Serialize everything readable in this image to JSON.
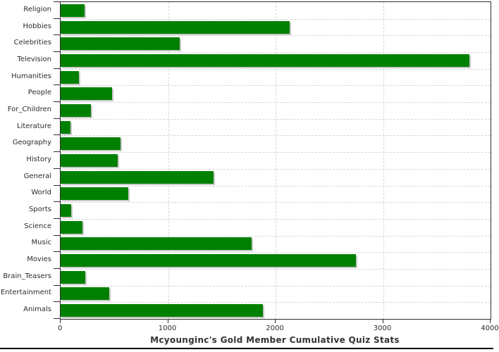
{
  "chart_data": {
    "type": "bar",
    "orientation": "horizontal",
    "title": "Mcyounginc's Gold Member Cumulative Quiz Stats",
    "categories": [
      "Religion",
      "Hobbies",
      "Celebrities",
      "Television",
      "Humanities",
      "People",
      "For_Children",
      "Literature",
      "Geography",
      "History",
      "General",
      "World",
      "Sports",
      "Science",
      "Music",
      "Movies",
      "Brain_Teasers",
      "Entertainment",
      "Animals"
    ],
    "values": [
      225,
      2130,
      1105,
      3800,
      170,
      480,
      280,
      90,
      560,
      530,
      1420,
      630,
      100,
      200,
      1780,
      2745,
      230,
      450,
      1885
    ],
    "xlim": [
      0,
      4000
    ],
    "x_ticks": [
      0,
      1000,
      2000,
      3000,
      4000
    ],
    "x_tick_labels": [
      "0",
      "1000",
      "2000",
      "3000",
      "4000"
    ],
    "grid": true,
    "legend": "none",
    "bar_color": "#008000",
    "bar_shadow_color": "#c9c9c9",
    "grid_color": "#d6d6d6",
    "axis_color": "#2e2e2e",
    "text_color": "#2b2b2b",
    "background_color": "#ffffff"
  }
}
